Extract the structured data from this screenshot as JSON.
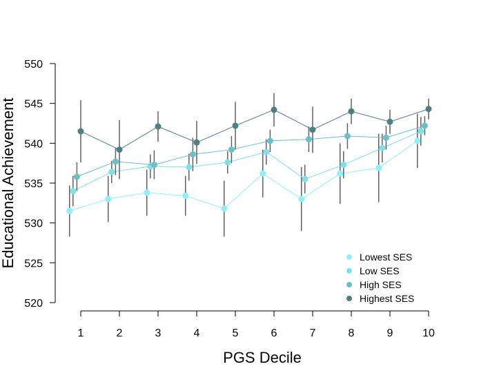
{
  "chart_data": {
    "type": "line",
    "title": "",
    "xlabel": "PGS Decile",
    "ylabel": "Educational Achievement",
    "x": [
      1,
      2,
      3,
      4,
      5,
      6,
      7,
      8,
      9,
      10
    ],
    "ylim": [
      520,
      550
    ],
    "yticks": [
      520,
      525,
      530,
      535,
      540,
      545,
      550
    ],
    "grid": false,
    "legend_position": "bottom-right",
    "error_bars": true,
    "series": [
      {
        "name": "Lowest SES",
        "color": "#8ef0f8",
        "values": [
          531.5,
          533.0,
          533.8,
          533.4,
          531.8,
          536.2,
          533.0,
          536.2,
          536.9,
          540.3
        ],
        "errors": [
          3.2,
          2.9,
          2.9,
          2.5,
          3.5,
          3.0,
          4.0,
          3.8,
          4.3,
          3.4
        ]
      },
      {
        "name": "Low SES",
        "color": "#7ee0e8",
        "values": [
          534.0,
          536.4,
          537.1,
          537.0,
          537.6,
          538.9,
          535.5,
          537.3,
          539.4,
          541.5
        ],
        "errors": [
          1.9,
          1.4,
          1.5,
          1.7,
          1.4,
          1.6,
          1.8,
          1.7,
          1.8,
          1.8
        ]
      },
      {
        "name": "High SES",
        "color": "#6bbfc6",
        "values": [
          535.8,
          537.7,
          537.3,
          538.6,
          539.2,
          540.3,
          540.5,
          540.9,
          540.7,
          542.2
        ],
        "errors": [
          1.8,
          1.7,
          1.8,
          2.1,
          1.7,
          1.4,
          1.6,
          1.6,
          1.5,
          1.2
        ]
      },
      {
        "name": "Highest SES",
        "color": "#4d7f85",
        "values": [
          541.5,
          539.2,
          542.1,
          540.1,
          542.2,
          544.2,
          541.7,
          544.0,
          542.7,
          544.3
        ],
        "errors": [
          3.9,
          3.7,
          1.9,
          2.7,
          3.0,
          2.1,
          2.9,
          1.6,
          1.5,
          1.3
        ]
      }
    ]
  }
}
